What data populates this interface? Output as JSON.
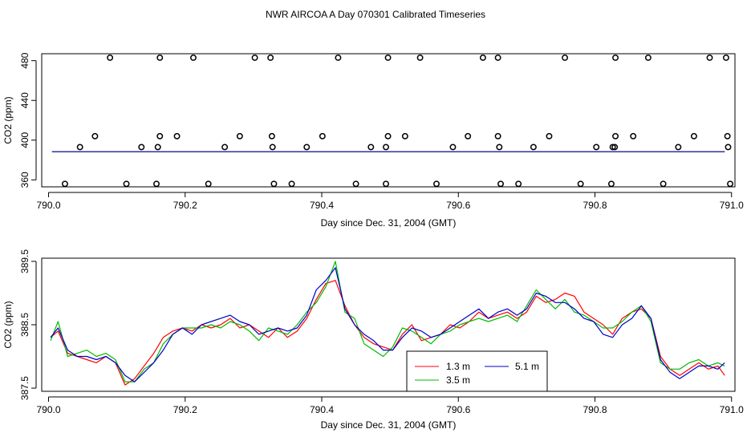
{
  "title": "NWR AIRCOA A  Day 070301  Calibrated Timeseries",
  "chart_data": [
    {
      "type": "scatter",
      "name": "top-panel",
      "xlabel": "Day since Dec. 31, 2004 (GMT)",
      "ylabel": "CO2 (ppm)",
      "xlim": [
        789.99,
        791.005
      ],
      "ylim": [
        353,
        487
      ],
      "xticks": [
        790.0,
        790.2,
        790.4,
        790.6,
        790.8,
        791.0
      ],
      "xtick_labels": [
        "790.0",
        "790.2",
        "790.4",
        "790.6",
        "790.8",
        "791.0"
      ],
      "yticks": [
        360,
        400,
        440,
        480
      ],
      "ytick_labels": [
        "360",
        "400",
        "440",
        "480"
      ],
      "calibration_points": {
        "marker": "open-circle",
        "x": [
          790.09,
          790.163,
          790.212,
          790.302,
          790.325,
          790.424,
          790.497,
          790.544,
          790.636,
          790.658,
          790.756,
          790.83,
          790.878,
          790.968,
          790.992,
          790.068,
          790.163,
          790.188,
          790.28,
          790.327,
          790.401,
          790.497,
          790.522,
          790.614,
          790.658,
          790.733,
          790.83,
          790.856,
          790.945,
          790.994,
          790.046,
          790.136,
          790.16,
          790.258,
          790.328,
          790.378,
          790.472,
          790.494,
          790.592,
          790.66,
          790.71,
          790.802,
          790.826,
          790.829,
          790.922,
          790.995,
          790.024,
          790.114,
          790.158,
          790.234,
          790.33,
          790.356,
          790.45,
          790.494,
          790.568,
          790.662,
          790.688,
          790.779,
          790.824,
          790.9,
          790.998
        ],
        "y": [
          483,
          483,
          483,
          483,
          483,
          483,
          483,
          483,
          483,
          483,
          483,
          483,
          483,
          483,
          483,
          404,
          404,
          404,
          404,
          404,
          404,
          404,
          404,
          404,
          404,
          404,
          404,
          404,
          404,
          404,
          393,
          393,
          393,
          393,
          393,
          393,
          393,
          393,
          393,
          393,
          393,
          393,
          393,
          393,
          393,
          393,
          356,
          356,
          356,
          356,
          356,
          356,
          356,
          356,
          356,
          356,
          356,
          356,
          356,
          356,
          356
        ]
      },
      "lines": [
        {
          "name": "1.3 m",
          "color": "#ff0000",
          "x": [
            790.005,
            790.99
          ],
          "y": [
            388.3,
            388.3
          ]
        },
        {
          "name": "3.5 m",
          "color": "#00bb00",
          "x": [
            790.005,
            790.99
          ],
          "y": [
            388.3,
            388.3
          ]
        },
        {
          "name": "5.1 m",
          "color": "#0000cc",
          "x": [
            790.005,
            790.99
          ],
          "y": [
            388.4,
            388.4
          ]
        }
      ]
    },
    {
      "type": "line",
      "name": "bottom-panel",
      "xlabel": "Day since Dec. 31, 2004 (GMT)",
      "ylabel": "CO2 (ppm)",
      "xlim": [
        789.99,
        791.005
      ],
      "ylim": [
        387.45,
        389.55
      ],
      "xticks": [
        790.0,
        790.2,
        790.4,
        790.6,
        790.8,
        791.0
      ],
      "xtick_labels": [
        "790.0",
        "790.2",
        "790.4",
        "790.6",
        "790.8",
        "791.0"
      ],
      "yticks": [
        387.5,
        388.5,
        389.5
      ],
      "ytick_labels": [
        "387.5",
        "388.5",
        "389.5"
      ],
      "legend": {
        "position": "bottom-center",
        "entries": [
          {
            "label": "1.3 m",
            "color": "#ff0000"
          },
          {
            "label": "3.5 m",
            "color": "#00bb00"
          },
          {
            "label": "5.1 m",
            "color": "#0000cc"
          }
        ]
      },
      "x": [
        790.003,
        790.014,
        790.028,
        790.042,
        790.056,
        790.07,
        790.084,
        790.098,
        790.112,
        790.126,
        790.14,
        790.154,
        790.168,
        790.182,
        790.196,
        790.21,
        790.224,
        790.238,
        790.252,
        790.266,
        790.28,
        790.294,
        790.308,
        790.322,
        790.336,
        790.35,
        790.364,
        790.378,
        790.392,
        790.406,
        790.42,
        790.434,
        790.448,
        790.462,
        790.476,
        790.49,
        790.504,
        790.518,
        790.532,
        790.546,
        790.56,
        790.574,
        790.588,
        790.602,
        790.616,
        790.63,
        790.644,
        790.658,
        790.672,
        790.686,
        790.7,
        790.714,
        790.728,
        790.742,
        790.756,
        790.77,
        790.784,
        790.798,
        790.812,
        790.826,
        790.84,
        790.854,
        790.868,
        790.882,
        790.896,
        790.91,
        790.924,
        790.938,
        790.952,
        790.966,
        790.98,
        790.99
      ],
      "series": [
        {
          "name": "1.3 m",
          "color": "#ff0000",
          "values": [
            388.3,
            388.4,
            388.05,
            388.0,
            387.95,
            387.9,
            388.0,
            387.9,
            387.55,
            387.65,
            387.85,
            388.05,
            388.3,
            388.4,
            388.45,
            388.4,
            388.5,
            388.45,
            388.5,
            388.6,
            388.45,
            388.5,
            388.4,
            388.3,
            388.45,
            388.3,
            388.4,
            388.6,
            388.9,
            389.15,
            389.2,
            388.8,
            388.5,
            388.3,
            388.2,
            388.15,
            388.1,
            388.35,
            388.5,
            388.25,
            388.3,
            388.35,
            388.5,
            388.45,
            388.55,
            388.7,
            388.6,
            388.65,
            388.7,
            388.6,
            388.7,
            388.95,
            388.85,
            388.9,
            389.0,
            388.95,
            388.7,
            388.6,
            388.5,
            388.35,
            388.6,
            388.7,
            388.75,
            388.6,
            388.0,
            387.8,
            387.7,
            387.8,
            387.9,
            387.8,
            387.85,
            387.7
          ]
        },
        {
          "name": "3.5 m",
          "color": "#00bb00",
          "values": [
            388.25,
            388.55,
            388.0,
            388.05,
            388.1,
            388.0,
            388.05,
            387.95,
            387.6,
            387.6,
            387.8,
            387.9,
            388.2,
            388.35,
            388.45,
            388.45,
            388.45,
            388.5,
            388.45,
            388.55,
            388.5,
            388.4,
            388.25,
            388.45,
            388.4,
            388.35,
            388.5,
            388.7,
            388.85,
            389.1,
            389.5,
            388.7,
            388.6,
            388.2,
            388.1,
            388.0,
            388.15,
            388.45,
            388.4,
            388.3,
            388.2,
            388.35,
            388.4,
            388.5,
            388.55,
            388.6,
            388.55,
            388.6,
            388.65,
            388.55,
            388.8,
            389.05,
            388.9,
            388.75,
            388.9,
            388.7,
            388.65,
            388.55,
            388.45,
            388.45,
            388.55,
            388.7,
            388.8,
            388.55,
            387.9,
            387.8,
            387.8,
            387.9,
            387.95,
            387.85,
            387.9,
            387.85
          ]
        },
        {
          "name": "5.1 m",
          "color": "#0000cc",
          "values": [
            388.3,
            388.45,
            388.1,
            388.0,
            388.0,
            387.95,
            388.0,
            387.9,
            387.7,
            387.6,
            387.75,
            387.9,
            388.1,
            388.35,
            388.45,
            388.35,
            388.5,
            388.55,
            388.6,
            388.65,
            388.55,
            388.5,
            388.35,
            388.4,
            388.45,
            388.4,
            388.45,
            388.65,
            389.05,
            389.2,
            389.4,
            388.75,
            388.5,
            388.35,
            388.25,
            388.1,
            388.1,
            388.3,
            388.45,
            388.4,
            388.3,
            388.35,
            388.45,
            388.55,
            388.65,
            388.75,
            388.6,
            388.7,
            388.75,
            388.65,
            388.75,
            389.0,
            388.95,
            388.85,
            388.85,
            388.75,
            388.6,
            388.55,
            388.35,
            388.3,
            388.5,
            388.6,
            388.8,
            388.6,
            387.95,
            387.75,
            387.65,
            387.75,
            387.85,
            387.85,
            387.8,
            387.9
          ]
        }
      ]
    }
  ]
}
